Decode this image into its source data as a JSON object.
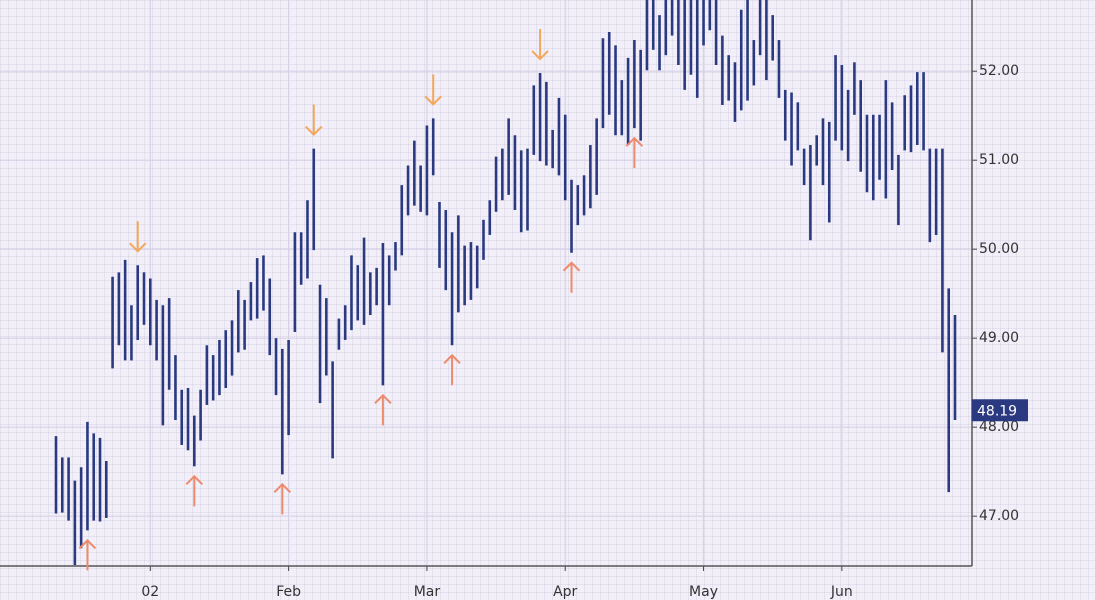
{
  "chart_data": {
    "type": "hl_bar",
    "color": "#2b3a80",
    "up_color": "#ee8a6c",
    "down_color": "#f2a85c",
    "ylim": [
      46.44,
      52.8
    ],
    "yticks": [
      {
        "value": 47,
        "label": "47.00"
      },
      {
        "value": 48,
        "label": "48.00"
      },
      {
        "value": 49,
        "label": "49.00"
      },
      {
        "value": 50,
        "label": "50.00"
      },
      {
        "value": 51,
        "label": "51.00"
      },
      {
        "value": 52,
        "label": "52.00"
      }
    ],
    "grid": true,
    "last_value": 48.19,
    "categories": [
      null,
      null,
      null,
      null,
      null,
      null,
      null,
      null,
      null,
      null,
      null,
      null,
      null,
      null,
      null,
      "02",
      null,
      null,
      null,
      null,
      null,
      null,
      null,
      null,
      null,
      null,
      null,
      null,
      null,
      null,
      null,
      null,
      null,
      null,
      null,
      null,
      null,
      "Feb",
      null,
      null,
      null,
      null,
      null,
      null,
      null,
      null,
      null,
      null,
      null,
      null,
      null,
      null,
      null,
      null,
      null,
      null,
      null,
      null,
      null,
      "Mar",
      null,
      null,
      null,
      null,
      null,
      null,
      null,
      null,
      null,
      null,
      null,
      null,
      null,
      null,
      null,
      null,
      null,
      null,
      null,
      null,
      null,
      "Apr",
      null,
      null,
      null,
      null,
      null,
      null,
      null,
      null,
      null,
      null,
      null,
      null,
      null,
      null,
      null,
      null,
      null,
      null,
      null,
      null,
      null,
      "May",
      null,
      null,
      null,
      null,
      null,
      null,
      null,
      null,
      null,
      null,
      null,
      null,
      null,
      null,
      null,
      null,
      null,
      null,
      null,
      null,
      null,
      "Jun",
      null,
      null,
      null,
      null,
      null,
      null,
      null,
      null,
      null,
      null,
      null,
      null,
      null,
      null,
      null,
      null,
      null,
      null
    ],
    "high": [
      47.9,
      47.66,
      47.66,
      47.4,
      47.55,
      48.06,
      47.93,
      47.88,
      47.62,
      49.69,
      49.74,
      49.88,
      49.37,
      49.82,
      49.74,
      49.67,
      49.43,
      49.37,
      49.45,
      48.81,
      48.42,
      48.44,
      48.13,
      48.42,
      48.92,
      48.81,
      48.98,
      49.09,
      49.2,
      49.54,
      49.43,
      49.63,
      49.9,
      49.93,
      49.67,
      49.0,
      48.88,
      48.98,
      50.19,
      50.19,
      50.55,
      51.13,
      49.6,
      49.45,
      48.74,
      49.22,
      49.37,
      49.93,
      49.82,
      50.13,
      49.74,
      49.79,
      50.07,
      49.93,
      50.08,
      50.72,
      50.94,
      51.22,
      50.94,
      51.39,
      51.47,
      50.53,
      50.44,
      50.19,
      50.38,
      50.04,
      50.08,
      50.04,
      50.33,
      50.55,
      51.04,
      51.13,
      51.47,
      51.28,
      51.11,
      51.13,
      51.84,
      51.98,
      51.88,
      51.34,
      51.7,
      51.51,
      50.78,
      50.72,
      50.83,
      51.17,
      51.47,
      52.37,
      52.44,
      52.29,
      51.9,
      52.15,
      52.35,
      52.24,
      52.8,
      52.8,
      52.63,
      52.8,
      52.8,
      52.8,
      52.8,
      52.8,
      52.8,
      52.8,
      52.8,
      52.8,
      52.4,
      52.18,
      52.1,
      52.69,
      52.8,
      52.35,
      52.8,
      52.8,
      52.63,
      52.35,
      51.79,
      51.76,
      51.65,
      51.13,
      51.17,
      51.28,
      51.47,
      51.43,
      52.18,
      52.07,
      51.79,
      52.1,
      51.9,
      51.51,
      51.51,
      51.51,
      51.9,
      51.65,
      51.06,
      51.73,
      51.84,
      51.99,
      51.99,
      51.13,
      51.13,
      51.13,
      49.56,
      49.26
    ],
    "low": [
      47.03,
      47.04,
      46.95,
      46.45,
      46.64,
      46.84,
      46.95,
      46.94,
      46.98,
      48.66,
      48.92,
      48.75,
      48.75,
      48.98,
      49.15,
      48.92,
      48.75,
      48.02,
      48.42,
      48.08,
      47.8,
      47.74,
      47.56,
      47.85,
      48.25,
      48.3,
      48.36,
      48.44,
      48.58,
      48.84,
      48.87,
      49.2,
      49.22,
      49.31,
      48.81,
      48.36,
      47.47,
      47.91,
      49.07,
      49.6,
      49.67,
      49.99,
      48.27,
      48.58,
      47.65,
      48.87,
      48.98,
      49.09,
      49.2,
      49.15,
      49.26,
      49.37,
      48.47,
      49.37,
      49.76,
      49.93,
      50.38,
      50.49,
      50.42,
      50.38,
      50.83,
      49.79,
      49.54,
      48.92,
      49.29,
      49.37,
      49.43,
      49.56,
      49.88,
      50.16,
      50.42,
      50.55,
      50.61,
      50.44,
      50.19,
      50.21,
      51.06,
      50.99,
      50.94,
      50.91,
      50.83,
      50.55,
      49.96,
      50.27,
      50.38,
      50.46,
      50.61,
      51.36,
      51.51,
      51.28,
      51.28,
      51.17,
      51.36,
      51.22,
      52.01,
      52.24,
      52.01,
      52.18,
      52.4,
      52.07,
      51.79,
      51.96,
      51.7,
      52.29,
      52.46,
      52.07,
      51.62,
      51.67,
      51.43,
      51.56,
      51.67,
      51.84,
      52.18,
      51.9,
      52.12,
      51.7,
      51.22,
      50.94,
      51.11,
      50.72,
      50.1,
      50.94,
      50.72,
      50.3,
      51.22,
      51.11,
      50.99,
      51.51,
      50.87,
      50.64,
      50.55,
      50.78,
      50.57,
      50.89,
      50.27,
      51.11,
      51.09,
      51.17,
      51.11,
      50.08,
      50.16,
      48.84,
      47.27,
      48.08
    ],
    "up_arrows": [
      5,
      22,
      36,
      52,
      63,
      82,
      92
    ],
    "down_arrows": [
      13,
      41,
      60,
      77
    ]
  }
}
